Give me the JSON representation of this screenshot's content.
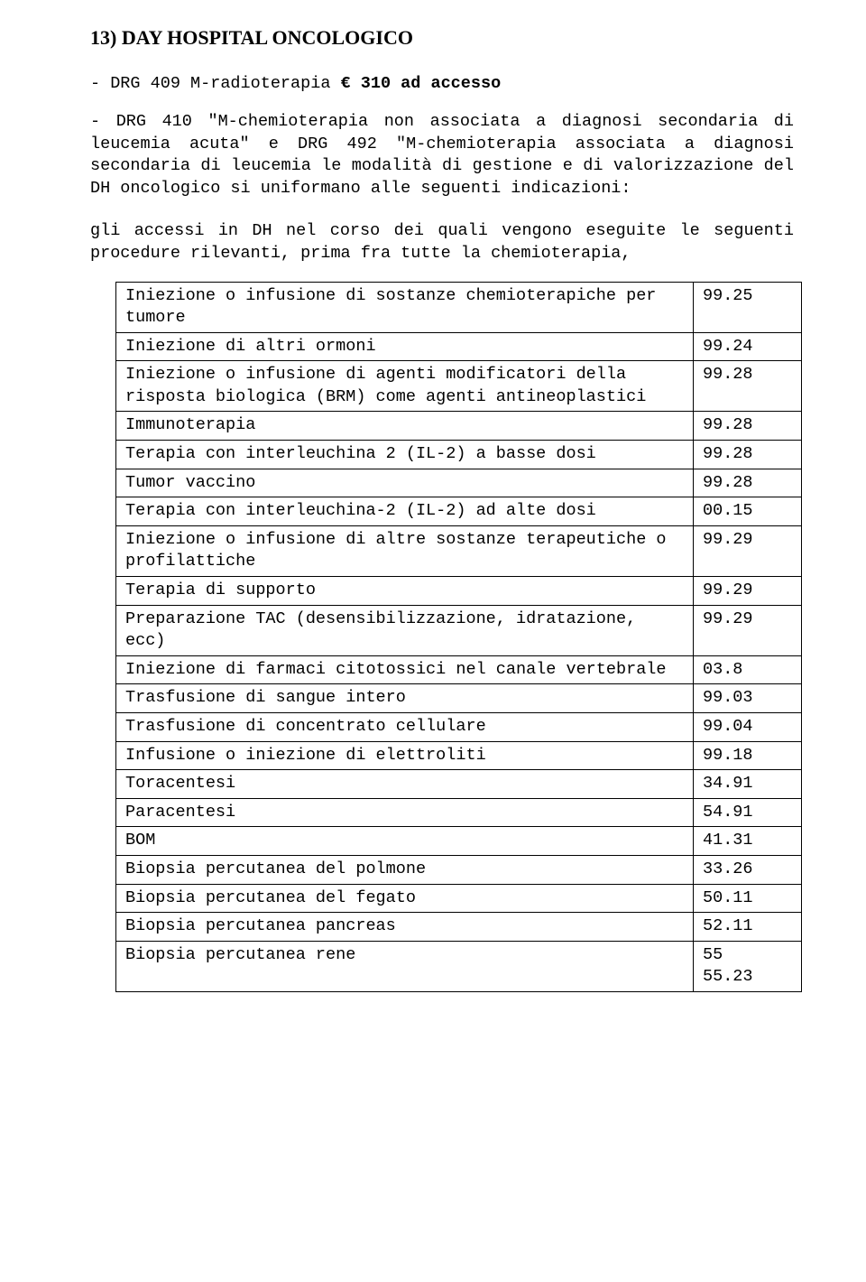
{
  "heading": "13)   DAY HOSPITAL ONCOLOGICO",
  "intro": {
    "line1_prefix": "- DRG 409 M-radioterapia  ",
    "line1_price": "€ 310 ad accesso",
    "block2": "- DRG 410 \"M-chemioterapia non associata a diagnosi secondaria di leucemia acuta\" e DRG 492 \"M-chemioterapia associata a diagnosi secondaria di leucemia le modalità di gestione e di valorizzazione del DH oncologico si uniformano alle seguenti indicazioni:"
  },
  "para2": "gli accessi in DH nel corso dei quali vengono eseguite le seguenti procedure rilevanti, prima fra tutte la chemioterapia,",
  "table": {
    "rows": [
      {
        "desc": "Iniezione o infusione di sostanze chemioterapiche per tumore",
        "code": "99.25"
      },
      {
        "desc": "Iniezione di altri ormoni",
        "code": "99.24"
      },
      {
        "desc": "Iniezione o infusione di agenti modificatori della risposta biologica (BRM) come agenti antineoplastici",
        "code": "99.28"
      },
      {
        "desc": "Immunoterapia",
        "code": "99.28"
      },
      {
        "desc": "Terapia con interleuchina 2 (IL-2) a basse dosi",
        "code": "99.28"
      },
      {
        "desc": "Tumor vaccino",
        "code": "99.28"
      },
      {
        "desc": "Terapia con interleuchina-2  (IL-2) ad alte dosi",
        "code": "00.15"
      },
      {
        "desc": "Iniezione o infusione di altre sostanze terapeutiche o profilattiche",
        "code": "99.29"
      },
      {
        "desc": "Terapia di supporto",
        "code": "99.29"
      },
      {
        "desc": "Preparazione TAC (desensibilizzazione, idratazione, ecc)",
        "code": "99.29"
      },
      {
        "desc": "Iniezione di farmaci citotossici nel canale vertebrale",
        "code": "03.8"
      },
      {
        "desc": "Trasfusione di sangue intero",
        "code": "99.03"
      },
      {
        "desc": "Trasfusione di concentrato cellulare",
        "code": "99.04"
      },
      {
        "desc": "Infusione o iniezione di elettroliti",
        "code": "99.18"
      },
      {
        "desc": "Toracentesi",
        "code": "34.91"
      },
      {
        "desc": "Paracentesi",
        "code": "54.91"
      },
      {
        "desc": "BOM",
        "code": "41.31"
      },
      {
        "desc": "Biopsia percutanea del polmone",
        "code": "33.26"
      },
      {
        "desc": "Biopsia percutanea del fegato",
        "code": "50.11"
      },
      {
        "desc": "Biopsia percutanea pancreas",
        "code": "52.11"
      },
      {
        "desc": "Biopsia percutanea rene",
        "code": "  55\n55.23"
      }
    ]
  },
  "colors": {
    "page_bg": "#ffffff",
    "text": "#000000",
    "border": "#000000"
  }
}
